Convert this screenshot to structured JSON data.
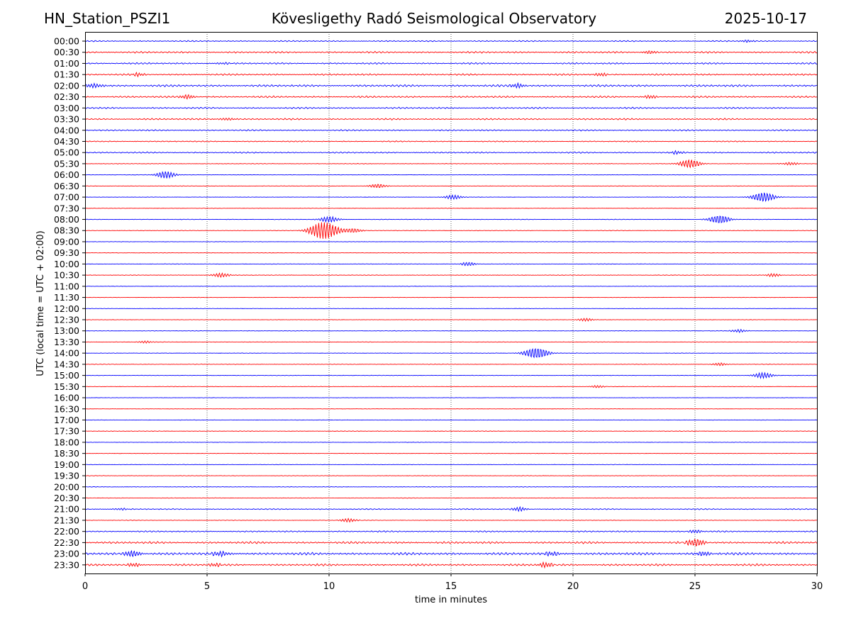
{
  "chart_data": {
    "type": "line",
    "title": "Kövesligethy Radó Seismological Observatory",
    "station": "HN_Station_PSZI1",
    "date": "2025-10-17",
    "xlabel": "time in minutes",
    "ylabel": "UTC (local time = UTC + 02:00)",
    "xlim": [
      0,
      30
    ],
    "x_ticks": [
      "0",
      "5",
      "10",
      "15",
      "20",
      "25",
      "30"
    ],
    "grid": "vertical dotted lines at every 5 minutes",
    "trace_colors": [
      "#0000ff",
      "#ff0000"
    ],
    "rows": [
      {
        "label": "00:00",
        "level": 0.7,
        "events": [
          [
            27.1,
            1.5
          ]
        ]
      },
      {
        "label": "00:30",
        "level": 1.0,
        "events": [
          [
            23.2,
            2
          ]
        ]
      },
      {
        "label": "01:00",
        "level": 0.9,
        "events": [
          [
            5.7,
            1.5
          ]
        ]
      },
      {
        "label": "01:30",
        "level": 1.0,
        "events": [
          [
            2.2,
            2
          ],
          [
            21.2,
            2
          ]
        ]
      },
      {
        "label": "02:00",
        "level": 1.2,
        "events": [
          [
            0.4,
            3
          ],
          [
            17.7,
            2.5
          ]
        ]
      },
      {
        "label": "02:30",
        "level": 1.0,
        "events": [
          [
            4.2,
            2.5
          ],
          [
            23.2,
            2
          ]
        ]
      },
      {
        "label": "03:00",
        "level": 0.9,
        "events": []
      },
      {
        "label": "03:30",
        "level": 0.9,
        "events": [
          [
            5.8,
            2
          ]
        ]
      },
      {
        "label": "04:00",
        "level": 0.8,
        "events": []
      },
      {
        "label": "04:30",
        "level": 0.6,
        "events": []
      },
      {
        "label": "05:00",
        "level": 0.8,
        "events": [
          [
            24.3,
            2
          ]
        ]
      },
      {
        "label": "05:30",
        "level": 0.3,
        "events": [
          [
            24.8,
            6
          ],
          [
            28.9,
            2
          ]
        ]
      },
      {
        "label": "06:00",
        "level": 0.2,
        "events": [
          [
            3.3,
            5
          ]
        ]
      },
      {
        "label": "06:30",
        "level": 0.25,
        "events": [
          [
            12.0,
            3
          ]
        ]
      },
      {
        "label": "07:00",
        "level": 0.2,
        "events": [
          [
            15.1,
            3
          ],
          [
            27.8,
            7
          ]
        ]
      },
      {
        "label": "07:30",
        "level": 0.2,
        "events": []
      },
      {
        "label": "08:00",
        "level": 0.3,
        "events": [
          [
            10.0,
            4
          ],
          [
            26.0,
            6
          ]
        ]
      },
      {
        "label": "08:30",
        "level": 0.3,
        "events": [
          [
            9.8,
            12
          ],
          [
            11.0,
            3
          ]
        ]
      },
      {
        "label": "09:00",
        "level": 0.2,
        "events": []
      },
      {
        "label": "09:30",
        "level": 0.2,
        "events": []
      },
      {
        "label": "10:00",
        "level": 0.25,
        "events": [
          [
            15.7,
            2.5
          ]
        ]
      },
      {
        "label": "10:30",
        "level": 0.3,
        "events": [
          [
            5.6,
            3
          ],
          [
            28.2,
            2
          ]
        ]
      },
      {
        "label": "11:00",
        "level": 0.2,
        "events": []
      },
      {
        "label": "11:30",
        "level": 0.2,
        "events": []
      },
      {
        "label": "12:00",
        "level": 0.2,
        "events": []
      },
      {
        "label": "12:30",
        "level": 0.2,
        "events": [
          [
            20.5,
            2
          ]
        ]
      },
      {
        "label": "13:00",
        "level": 0.25,
        "events": [
          [
            26.8,
            2
          ]
        ]
      },
      {
        "label": "13:30",
        "level": 0.25,
        "events": [
          [
            2.5,
            1.5
          ]
        ]
      },
      {
        "label": "14:00",
        "level": 0.2,
        "events": [
          [
            18.5,
            8
          ]
        ]
      },
      {
        "label": "14:30",
        "level": 0.3,
        "events": [
          [
            26.0,
            2
          ]
        ]
      },
      {
        "label": "15:00",
        "level": 0.25,
        "events": [
          [
            27.8,
            4
          ]
        ]
      },
      {
        "label": "15:30",
        "level": 0.25,
        "events": [
          [
            21.0,
            1.5
          ]
        ]
      },
      {
        "label": "16:00",
        "level": 0.15,
        "events": []
      },
      {
        "label": "16:30",
        "level": 0.15,
        "events": []
      },
      {
        "label": "17:00",
        "level": 0.2,
        "events": []
      },
      {
        "label": "17:30",
        "level": 0.3,
        "events": []
      },
      {
        "label": "18:00",
        "level": 0.2,
        "events": []
      },
      {
        "label": "18:30",
        "level": 0.2,
        "events": []
      },
      {
        "label": "19:00",
        "level": 0.25,
        "events": []
      },
      {
        "label": "19:30",
        "level": 0.25,
        "events": []
      },
      {
        "label": "20:00",
        "level": 0.3,
        "events": []
      },
      {
        "label": "20:30",
        "level": 0.3,
        "events": []
      },
      {
        "label": "21:00",
        "level": 0.6,
        "events": [
          [
            17.8,
            2.5
          ],
          [
            1.5,
            1.5
          ]
        ]
      },
      {
        "label": "21:30",
        "level": 0.3,
        "events": [
          [
            10.8,
            2.5
          ]
        ]
      },
      {
        "label": "22:00",
        "level": 0.8,
        "events": [
          [
            25.0,
            2
          ]
        ]
      },
      {
        "label": "22:30",
        "level": 1.2,
        "events": [
          [
            25.0,
            5
          ]
        ]
      },
      {
        "label": "23:00",
        "level": 1.5,
        "events": [
          [
            1.9,
            4
          ],
          [
            5.6,
            3.5
          ],
          [
            19.2,
            3
          ],
          [
            25.4,
            3
          ]
        ]
      },
      {
        "label": "23:30",
        "level": 1.2,
        "events": [
          [
            18.9,
            3
          ],
          [
            2.0,
            2
          ],
          [
            5.4,
            2
          ]
        ]
      }
    ]
  }
}
